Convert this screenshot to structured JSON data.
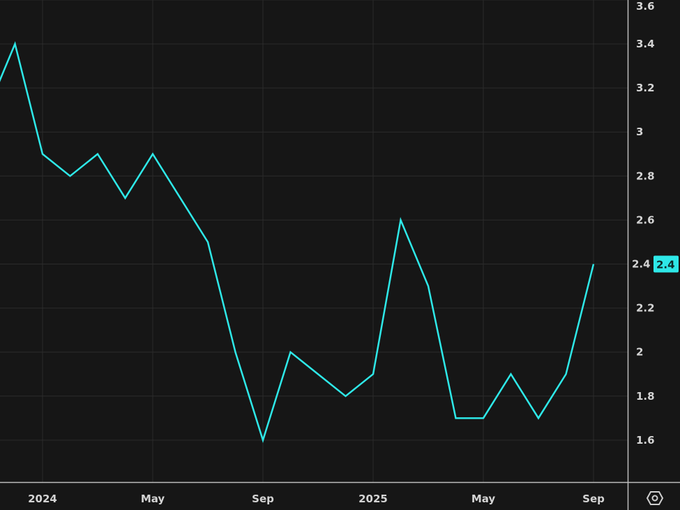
{
  "chart_data": {
    "type": "line",
    "title": "",
    "xlabel": "",
    "ylabel": "",
    "x": [
      "2023-11",
      "2023-12",
      "2024-01",
      "2024-02",
      "2024-03",
      "2024-04",
      "2024-05",
      "2024-06",
      "2024-07",
      "2024-08",
      "2024-09",
      "2024-10",
      "2024-11",
      "2024-12",
      "2025-01",
      "2025-02",
      "2025-03",
      "2025-04",
      "2025-05",
      "2025-06",
      "2025-07",
      "2025-08",
      "2025-09"
    ],
    "series": [
      {
        "values": [
          3.1,
          3.4,
          2.9,
          2.8,
          2.9,
          2.7,
          2.9,
          2.7,
          2.5,
          2.0,
          1.6,
          2.0,
          1.9,
          1.8,
          1.9,
          2.6,
          2.3,
          1.7,
          1.7,
          1.9,
          1.7,
          1.9,
          2.4
        ]
      }
    ],
    "ylim": [
      1.41,
      3.6
    ],
    "y_ticks": [
      "1.6",
      "1.8",
      "2",
      "2.2",
      "2.4",
      "2.6",
      "2.8",
      "3",
      "3.2",
      "3.4",
      "3.6"
    ],
    "x_ticks": [
      {
        "date": "2024-01",
        "label": "2024"
      },
      {
        "date": "2024-05",
        "label": "May"
      },
      {
        "date": "2024-09",
        "label": "Sep"
      },
      {
        "date": "2025-01",
        "label": "2025"
      },
      {
        "date": "2025-05",
        "label": "May"
      },
      {
        "date": "2025-09",
        "label": "Sep"
      }
    ],
    "last_value_label": "2.4",
    "grid": true,
    "colors": {
      "line": "#2ee8e8",
      "background": "#161616",
      "grid": "#2b2b2b",
      "text": "#d4d4d4"
    }
  },
  "controls": {
    "settings_icon": "settings-hexagon-icon"
  }
}
